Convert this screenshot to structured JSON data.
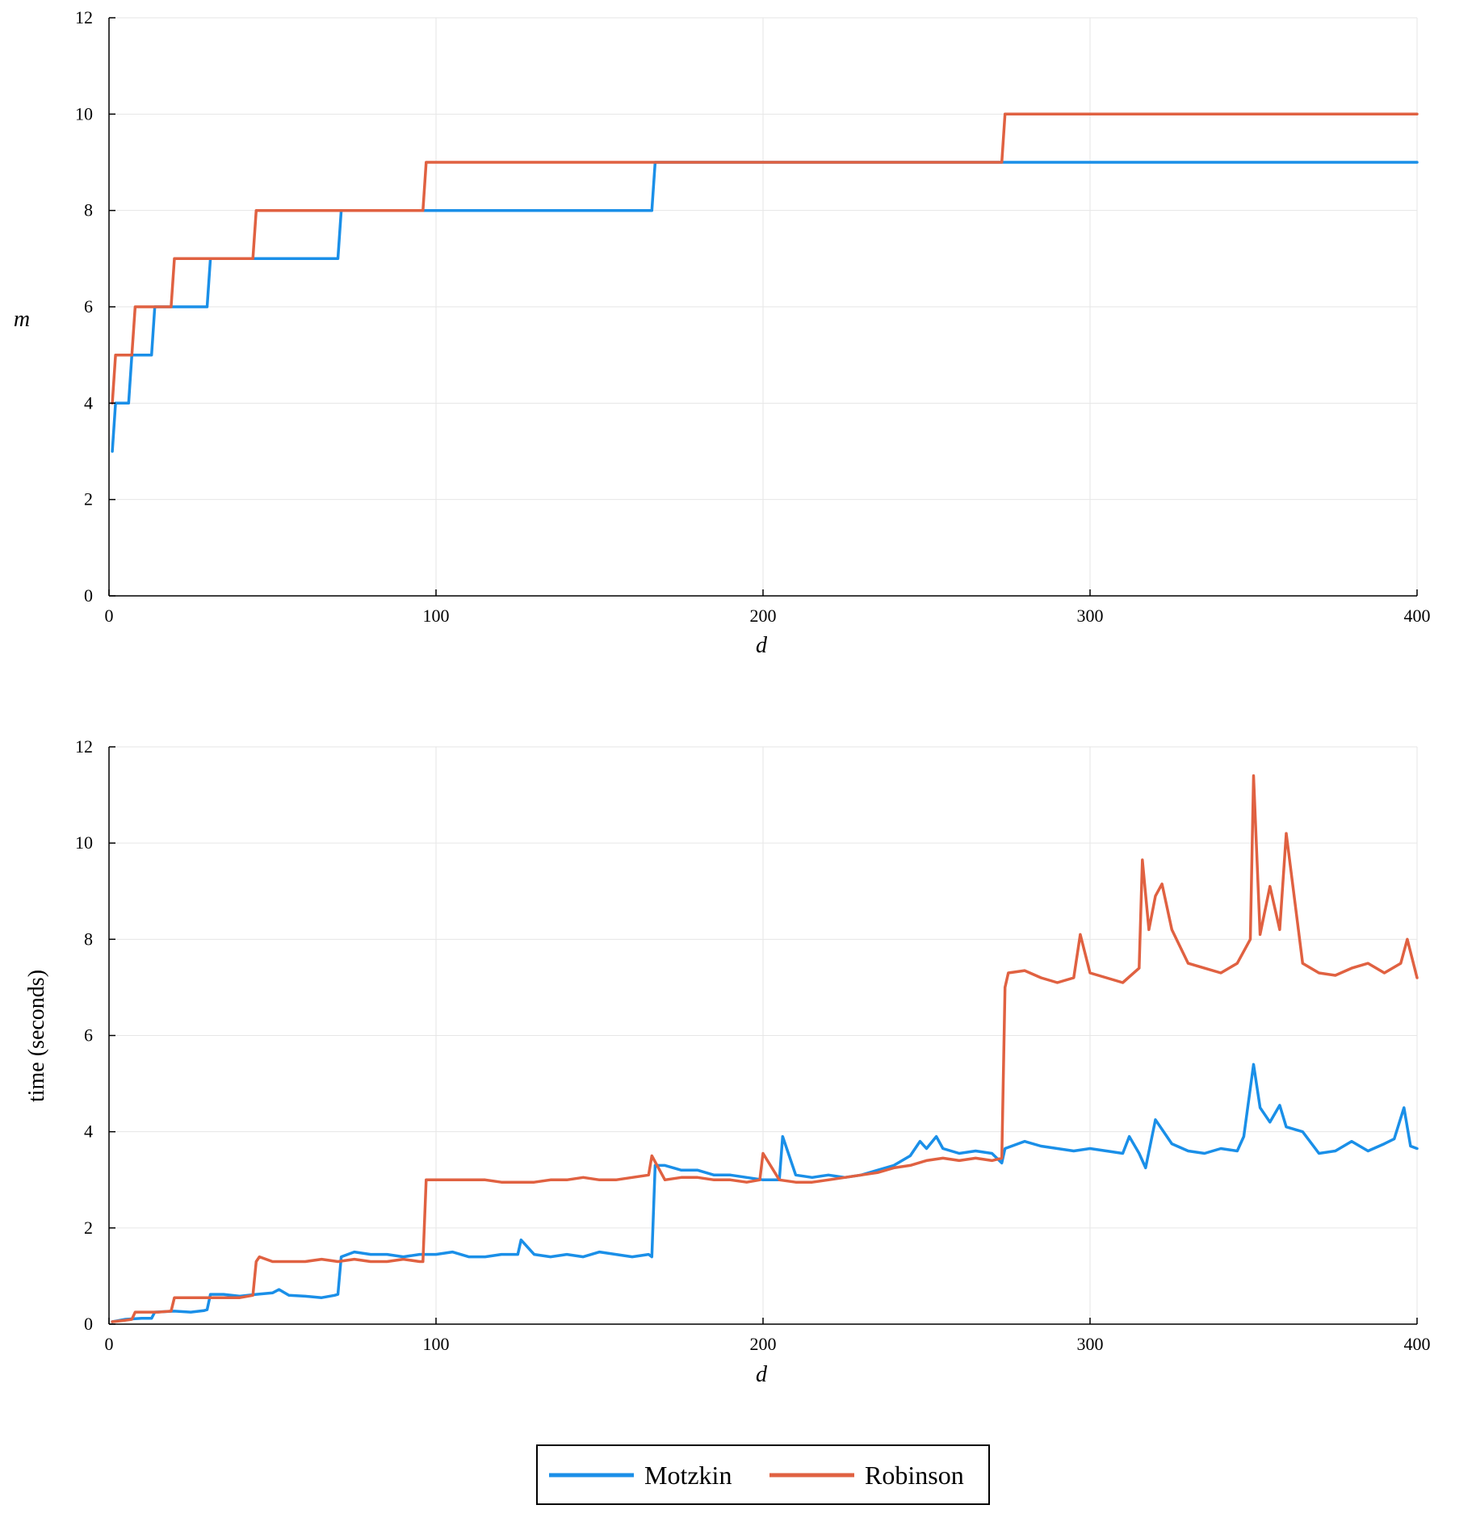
{
  "legend": {
    "entries": [
      {
        "name": "Motzkin",
        "color": "#1a8fe8"
      },
      {
        "name": "Robinson",
        "color": "#e06141"
      }
    ]
  },
  "chart_data": [
    {
      "type": "line",
      "title": "",
      "xlabel": "d",
      "ylabel": "m",
      "xlim": [
        0,
        400
      ],
      "ylim": [
        0,
        12
      ],
      "xticks": [
        0,
        100,
        200,
        300,
        400
      ],
      "yticks": [
        0,
        2,
        4,
        6,
        8,
        10,
        12
      ],
      "grid": true,
      "step": true,
      "series": [
        {
          "name": "Motzkin",
          "color": "#1a8fe8",
          "x": [
            1,
            2,
            6,
            7,
            13,
            14,
            30,
            31,
            70,
            71,
            166,
            167,
            400
          ],
          "values": [
            3,
            4,
            4,
            5,
            5,
            6,
            6,
            7,
            7,
            8,
            8,
            9,
            9
          ]
        },
        {
          "name": "Robinson",
          "color": "#e06141",
          "x": [
            1,
            2,
            7,
            8,
            19,
            20,
            44,
            45,
            96,
            97,
            273,
            274,
            400
          ],
          "values": [
            4,
            5,
            5,
            6,
            6,
            7,
            7,
            8,
            8,
            9,
            9,
            10,
            10
          ]
        }
      ]
    },
    {
      "type": "line",
      "title": "",
      "xlabel": "d",
      "ylabel": "time (seconds)",
      "xlim": [
        0,
        400
      ],
      "ylim": [
        0,
        12
      ],
      "xticks": [
        0,
        100,
        200,
        300,
        400
      ],
      "yticks": [
        0,
        2,
        4,
        6,
        8,
        10,
        12
      ],
      "grid": true,
      "series": [
        {
          "name": "Motzkin",
          "color": "#1a8fe8",
          "x": [
            1,
            5,
            10,
            13,
            14,
            20,
            25,
            29,
            30,
            31,
            35,
            40,
            45,
            50,
            52,
            55,
            60,
            65,
            69,
            70,
            71,
            75,
            80,
            85,
            90,
            95,
            100,
            105,
            110,
            115,
            120,
            125,
            126,
            130,
            135,
            140,
            145,
            150,
            155,
            160,
            165,
            166,
            167,
            170,
            175,
            180,
            185,
            190,
            195,
            200,
            205,
            206,
            210,
            215,
            220,
            225,
            230,
            235,
            240,
            245,
            248,
            250,
            253,
            255,
            260,
            265,
            270,
            273,
            274,
            280,
            285,
            290,
            295,
            300,
            305,
            310,
            312,
            315,
            317,
            320,
            325,
            330,
            335,
            340,
            345,
            347,
            350,
            352,
            355,
            358,
            360,
            365,
            370,
            375,
            380,
            385,
            390,
            393,
            396,
            398,
            400
          ],
          "values": [
            0.05,
            0.1,
            0.12,
            0.12,
            0.25,
            0.27,
            0.25,
            0.28,
            0.3,
            0.62,
            0.62,
            0.58,
            0.62,
            0.65,
            0.72,
            0.6,
            0.58,
            0.55,
            0.6,
            0.62,
            1.4,
            1.5,
            1.45,
            1.45,
            1.4,
            1.45,
            1.45,
            1.5,
            1.4,
            1.4,
            1.45,
            1.45,
            1.75,
            1.45,
            1.4,
            1.45,
            1.4,
            1.5,
            1.45,
            1.4,
            1.45,
            1.4,
            3.3,
            3.3,
            3.2,
            3.2,
            3.1,
            3.1,
            3.05,
            3.0,
            3.0,
            3.9,
            3.1,
            3.05,
            3.1,
            3.05,
            3.1,
            3.2,
            3.3,
            3.5,
            3.8,
            3.65,
            3.9,
            3.65,
            3.55,
            3.6,
            3.55,
            3.35,
            3.65,
            3.8,
            3.7,
            3.65,
            3.6,
            3.65,
            3.6,
            3.55,
            3.9,
            3.55,
            3.25,
            4.25,
            3.75,
            3.6,
            3.55,
            3.65,
            3.6,
            3.9,
            5.4,
            4.5,
            4.2,
            4.55,
            4.1,
            4.0,
            3.55,
            3.6,
            3.8,
            3.6,
            3.75,
            3.85,
            4.5,
            3.7,
            3.65
          ]
        },
        {
          "name": "Robinson",
          "color": "#e06141",
          "x": [
            1,
            5,
            7,
            8,
            15,
            19,
            20,
            25,
            30,
            35,
            40,
            44,
            45,
            46,
            50,
            55,
            60,
            65,
            70,
            75,
            80,
            85,
            90,
            95,
            96,
            97,
            100,
            105,
            110,
            115,
            120,
            125,
            130,
            135,
            140,
            145,
            150,
            155,
            160,
            165,
            166,
            170,
            175,
            180,
            185,
            190,
            195,
            199,
            200,
            205,
            210,
            215,
            220,
            225,
            230,
            235,
            240,
            245,
            250,
            255,
            260,
            265,
            270,
            273,
            274,
            275,
            280,
            285,
            290,
            295,
            297,
            300,
            305,
            310,
            315,
            316,
            318,
            320,
            322,
            325,
            330,
            335,
            340,
            345,
            349,
            350,
            352,
            355,
            358,
            360,
            365,
            370,
            375,
            380,
            385,
            390,
            395,
            397,
            400
          ],
          "values": [
            0.05,
            0.08,
            0.1,
            0.25,
            0.25,
            0.27,
            0.55,
            0.55,
            0.55,
            0.55,
            0.55,
            0.6,
            1.3,
            1.4,
            1.3,
            1.3,
            1.3,
            1.35,
            1.3,
            1.35,
            1.3,
            1.3,
            1.35,
            1.3,
            1.3,
            3.0,
            3.0,
            3.0,
            3.0,
            3.0,
            2.95,
            2.95,
            2.95,
            3.0,
            3.0,
            3.05,
            3.0,
            3.0,
            3.05,
            3.1,
            3.5,
            3.0,
            3.05,
            3.05,
            3.0,
            3.0,
            2.95,
            3.0,
            3.55,
            3.0,
            2.95,
            2.95,
            3.0,
            3.05,
            3.1,
            3.15,
            3.25,
            3.3,
            3.4,
            3.45,
            3.4,
            3.45,
            3.4,
            3.45,
            7.0,
            7.3,
            7.35,
            7.2,
            7.1,
            7.2,
            8.1,
            7.3,
            7.2,
            7.1,
            7.4,
            9.65,
            8.2,
            8.9,
            9.15,
            8.2,
            7.5,
            7.4,
            7.3,
            7.5,
            8.0,
            11.4,
            8.1,
            9.1,
            8.2,
            10.2,
            7.5,
            7.3,
            7.25,
            7.4,
            7.5,
            7.3,
            7.5,
            8.0,
            7.2
          ]
        }
      ]
    }
  ]
}
